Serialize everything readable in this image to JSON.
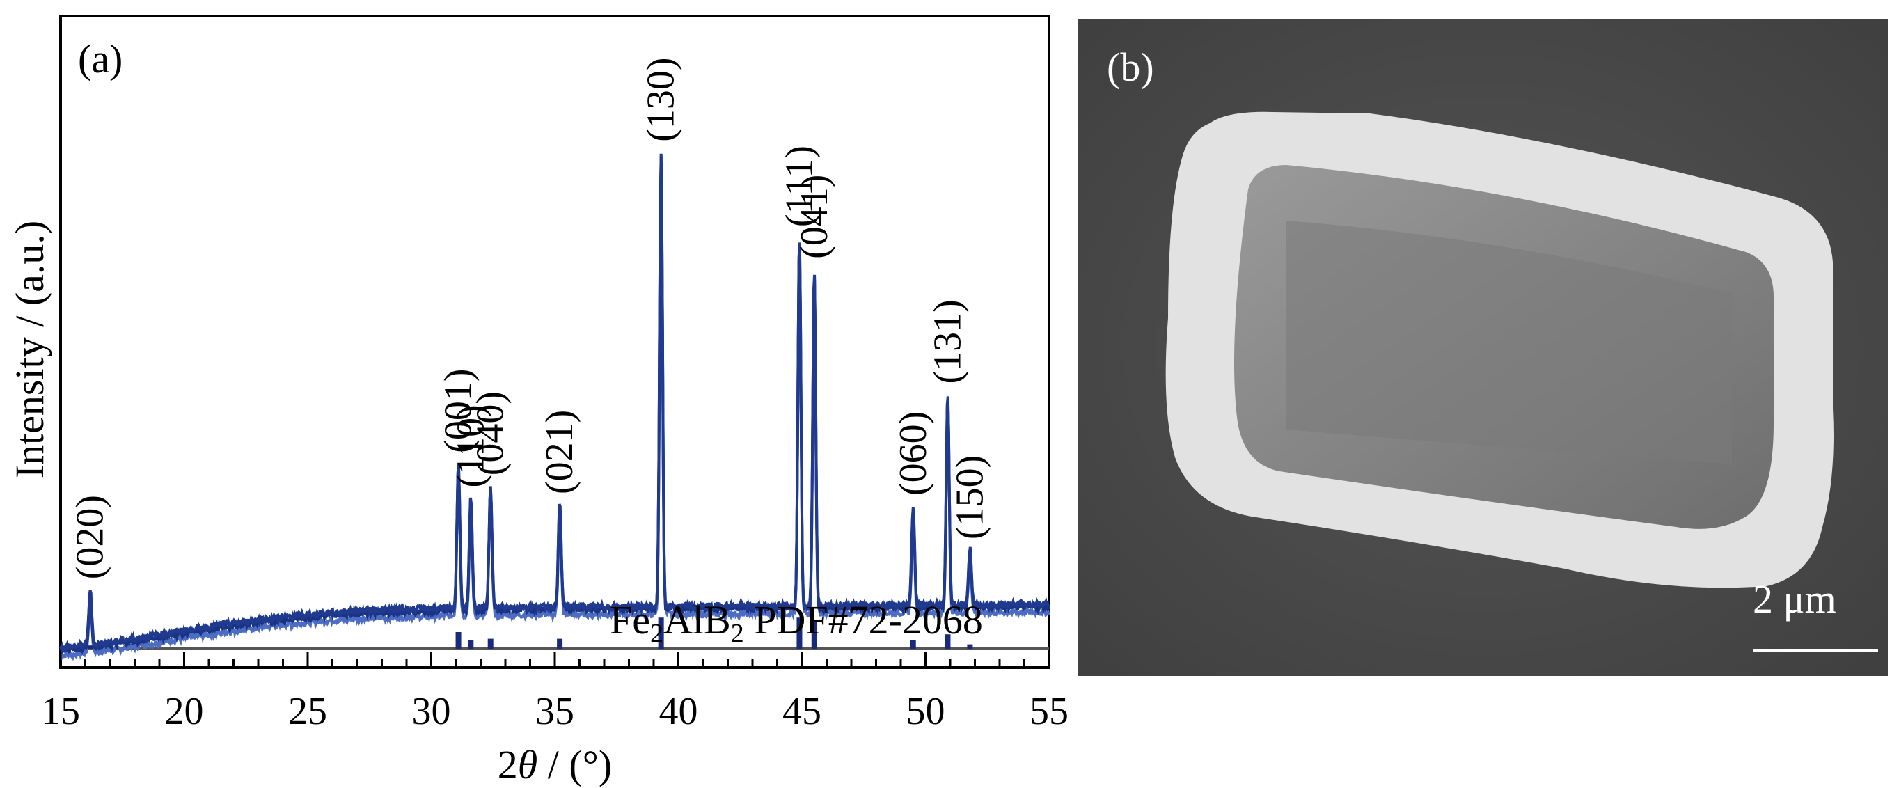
{
  "chart_data": [
    {
      "type": "line",
      "panel_label": "(a)",
      "title": "",
      "xlabel": "2θ / (°)",
      "ylabel": "Intensity / (a.u.)",
      "xlim": [
        15,
        55
      ],
      "xticks": [
        "15",
        "20",
        "25",
        "30",
        "35",
        "40",
        "45",
        "50",
        "55"
      ],
      "grid": false,
      "reference_label": "Fe2AlB2 PDF#72-2068",
      "line_color": "#1f3a8f",
      "series": [
        {
          "background": [
            [
              15,
              0.05
            ],
            [
              17,
              0.09
            ],
            [
              19,
              0.15
            ],
            [
              21,
              0.21
            ],
            [
              23,
              0.26
            ],
            [
              25,
              0.3
            ],
            [
              27,
              0.33
            ],
            [
              29,
              0.34
            ],
            [
              31,
              0.35
            ],
            [
              33,
              0.355
            ],
            [
              35,
              0.36
            ],
            [
              37,
              0.36
            ],
            [
              39,
              0.362
            ],
            [
              41,
              0.363
            ],
            [
              43,
              0.365
            ],
            [
              45,
              0.367
            ],
            [
              47,
              0.37
            ],
            [
              49,
              0.372
            ],
            [
              51,
              0.374
            ],
            [
              53,
              0.375
            ],
            [
              55,
              0.377
            ]
          ],
          "peaks": [
            {
              "hkl": "(020)",
              "x": 16.2,
              "y": 0.49
            },
            {
              "hkl": "(001)",
              "x": 31.1,
              "y": 1.44
            },
            {
              "hkl": "(110)",
              "x": 31.6,
              "y": 1.18
            },
            {
              "hkl": "(040)",
              "x": 32.4,
              "y": 1.27
            },
            {
              "hkl": "(021)",
              "x": 35.2,
              "y": 1.13
            },
            {
              "hkl": "(130)",
              "x": 39.3,
              "y": 3.78
            },
            {
              "hkl": "(111)",
              "x": 44.9,
              "y": 3.14
            },
            {
              "hkl": "(041)",
              "x": 45.5,
              "y": 2.9
            },
            {
              "hkl": "(060)",
              "x": 49.5,
              "y": 1.12
            },
            {
              "hkl": "(131)",
              "x": 50.9,
              "y": 1.96
            },
            {
              "hkl": "(150)",
              "x": 51.8,
              "y": 0.79
            }
          ]
        }
      ],
      "reference_sticks": [
        {
          "x": 16.2,
          "h": 0.03
        },
        {
          "x": 31.1,
          "h": 0.15
        },
        {
          "x": 31.6,
          "h": 0.08
        },
        {
          "x": 32.4,
          "h": 0.09
        },
        {
          "x": 35.2,
          "h": 0.09
        },
        {
          "x": 39.3,
          "h": 0.28
        },
        {
          "x": 44.9,
          "h": 0.28
        },
        {
          "x": 45.5,
          "h": 0.24
        },
        {
          "x": 49.5,
          "h": 0.08
        },
        {
          "x": 50.9,
          "h": 0.13
        },
        {
          "x": 51.8,
          "h": 0.04
        }
      ],
      "ylim": [
        -0.1,
        4.8
      ]
    },
    {
      "type": "image",
      "panel_label": "(b)",
      "scale_bar_label": "2 μm"
    }
  ]
}
